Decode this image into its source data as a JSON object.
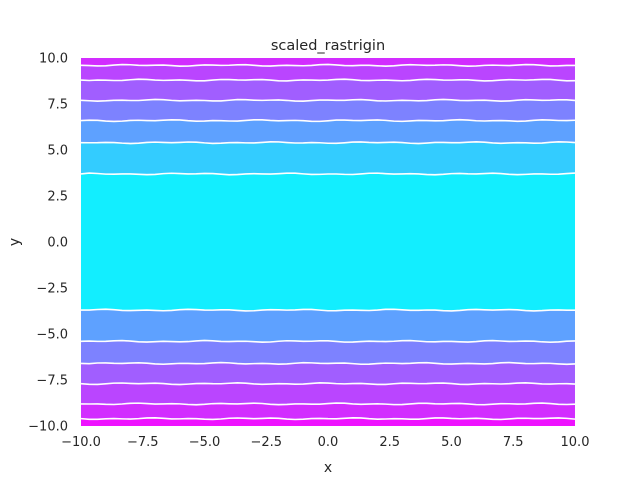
{
  "chart_data": {
    "type": "contour",
    "title": "scaled_rastrigin",
    "xlabel": "x",
    "ylabel": "y",
    "xlim": [
      -10,
      10
    ],
    "ylim": [
      -10,
      10
    ],
    "xticks": [
      "−10.0",
      "−7.5",
      "−5.0",
      "−2.5",
      "0.0",
      "2.5",
      "5.0",
      "7.5",
      "10.0"
    ],
    "yticks": [
      "−10.0",
      "−7.5",
      "−5.0",
      "−2.5",
      "0.0",
      "2.5",
      "5.0",
      "7.5",
      "10.0"
    ],
    "xtick_values": [
      -10,
      -7.5,
      -5,
      -2.5,
      0,
      2.5,
      5,
      7.5,
      10
    ],
    "ytick_values": [
      -10,
      -7.5,
      -5,
      -2.5,
      0,
      2.5,
      5,
      7.5,
      10
    ],
    "colormap": "cool",
    "grid": false,
    "bands": [
      {
        "y0": -10.0,
        "y1": -9.6,
        "color": "#ee11ff"
      },
      {
        "y0": -9.6,
        "y1": -8.8,
        "color": "#d22dff"
      },
      {
        "y0": -8.8,
        "y1": -7.7,
        "color": "#ba45ff"
      },
      {
        "y0": -7.7,
        "y1": -6.6,
        "color": "#a15eff"
      },
      {
        "y0": -6.6,
        "y1": -5.4,
        "color": "#7d82ff"
      },
      {
        "y0": -5.4,
        "y1": -3.7,
        "color": "#5ea1ff"
      },
      {
        "y0": -3.7,
        "y1": 3.7,
        "color": "#12eeff"
      },
      {
        "y0": 3.7,
        "y1": 5.4,
        "color": "#33ccff"
      },
      {
        "y0": 5.4,
        "y1": 6.6,
        "color": "#5ea1ff"
      },
      {
        "y0": 6.6,
        "y1": 7.7,
        "color": "#7d82ff"
      },
      {
        "y0": 7.7,
        "y1": 8.8,
        "color": "#a15eff"
      },
      {
        "y0": 8.8,
        "y1": 9.6,
        "color": "#ba45ff"
      },
      {
        "y0": 9.6,
        "y1": 10.0,
        "color": "#d22dff"
      }
    ],
    "contour_lines_y": [
      -9.6,
      -8.8,
      -7.7,
      -6.6,
      -5.4,
      -3.7,
      3.7,
      5.4,
      6.6,
      7.7,
      8.8,
      9.6
    ],
    "contour_line_color": "#ffffff"
  }
}
